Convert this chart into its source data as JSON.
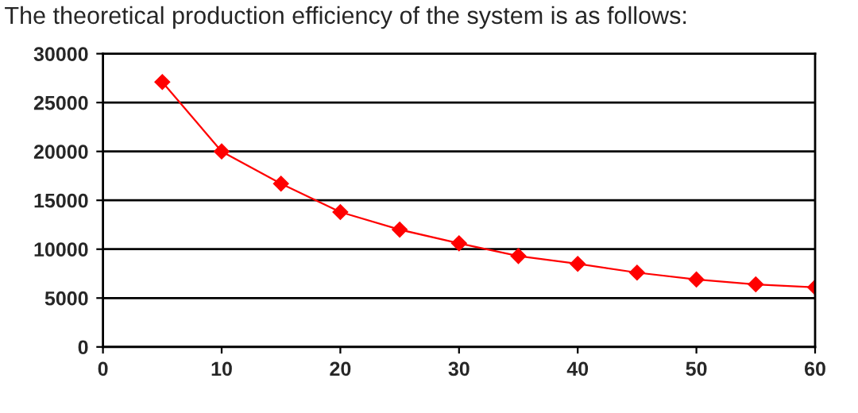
{
  "chart_data": {
    "type": "line",
    "title": "The theoretical production efficiency of the system is as follows:",
    "x": [
      5,
      10,
      15,
      20,
      25,
      30,
      35,
      40,
      45,
      50,
      55,
      60
    ],
    "series": [
      {
        "color": "#ff0000",
        "values": [
          27100,
          20000,
          16700,
          13800,
          12000,
          10600,
          9300,
          8500,
          7600,
          6900,
          6400,
          6100
        ]
      }
    ],
    "xlim": [
      0,
      60
    ],
    "xticks": [
      0,
      10,
      20,
      30,
      40,
      50,
      60
    ],
    "ylim": [
      0,
      30000
    ],
    "yticks": [
      0,
      5000,
      10000,
      15000,
      20000,
      25000,
      30000
    ],
    "grid": "y",
    "marker": "diamond",
    "line_style": "solid",
    "legend": false
  }
}
